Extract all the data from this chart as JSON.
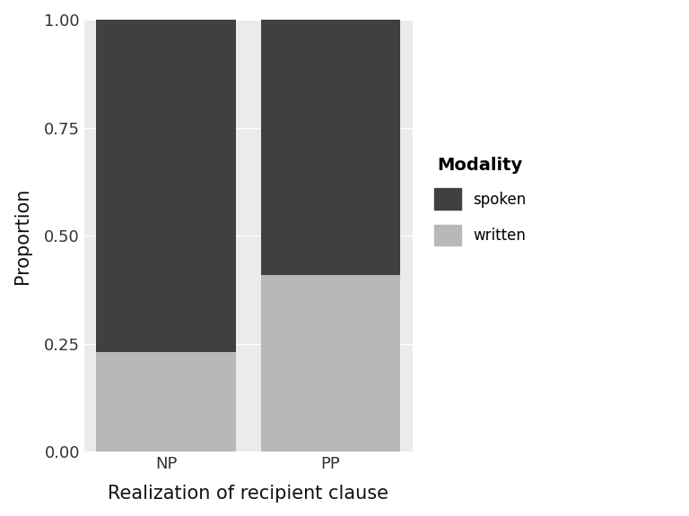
{
  "categories": [
    "NP",
    "PP"
  ],
  "written_values": [
    0.23,
    0.41
  ],
  "spoken_values": [
    0.77,
    0.59
  ],
  "spoken_color": "#404040",
  "written_color": "#b8b8b8",
  "title": "",
  "xlabel": "Realization of recipient clause",
  "ylabel": "Proportion",
  "legend_title": "Modality",
  "legend_labels": [
    "spoken",
    "written"
  ],
  "ylim": [
    0.0,
    1.0
  ],
  "yticks": [
    0.0,
    0.25,
    0.5,
    0.75,
    1.0
  ],
  "background_color": "#ffffff",
  "panel_color": "#ebebeb",
  "grid_color": "#ffffff",
  "bar_width": 0.85,
  "xlim": [
    -0.5,
    1.5
  ]
}
